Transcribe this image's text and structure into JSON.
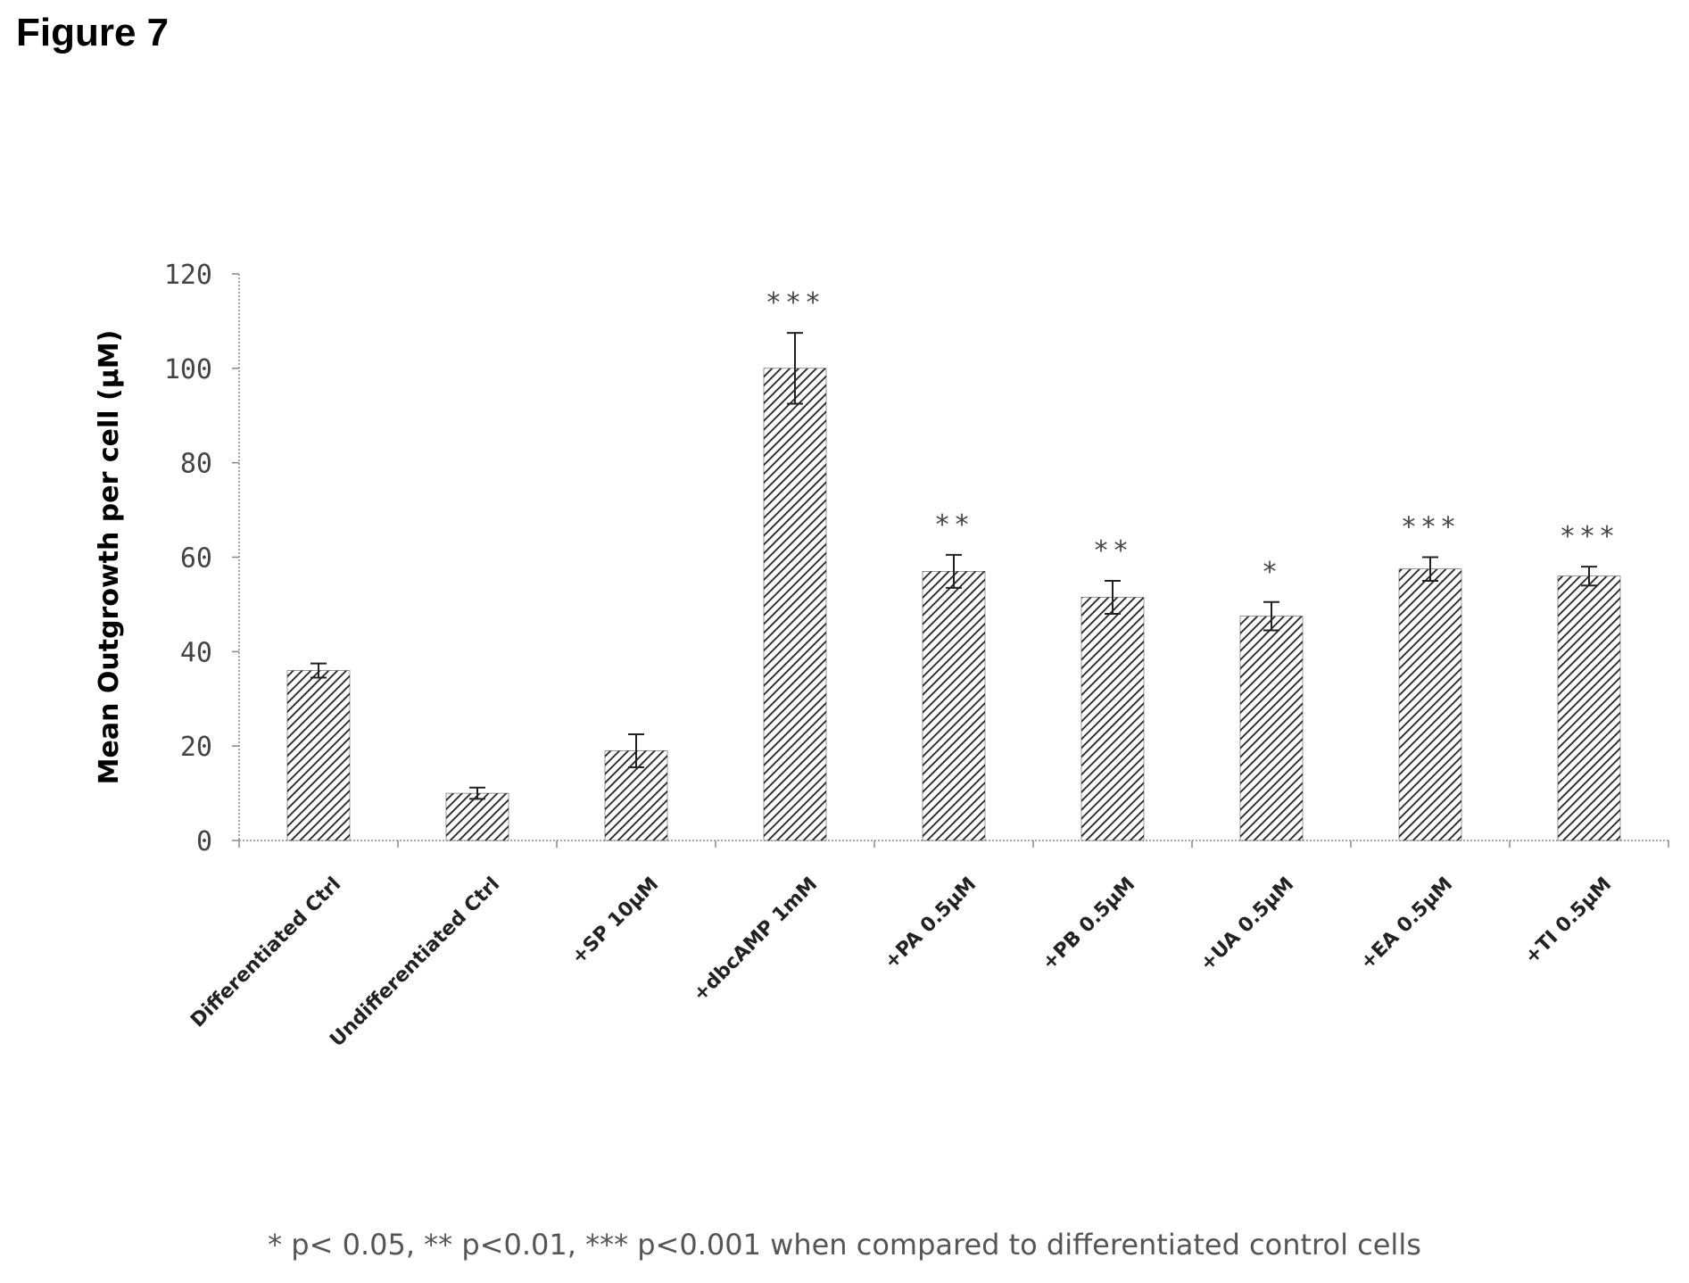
{
  "figure_label": "Figure 7",
  "footnote": "*  p< 0.05, ** p<0.01, *** p<0.001 when compared to differentiated control cells",
  "chart_data": {
    "type": "bar",
    "title": "",
    "xlabel": "",
    "ylabel": "Mean Outgrowth per cell (µM)",
    "ylim": [
      0,
      120
    ],
    "yticks": [
      0,
      20,
      40,
      60,
      80,
      100,
      120
    ],
    "grid": false,
    "bar_pattern": "diagonal-hatch",
    "colors": {
      "bar_fill": "#ffffff",
      "hatch": "#222222",
      "axis": "#888888"
    },
    "categories": [
      "Differentiated Ctrl",
      "Undifferentiated Ctrl",
      "+SP 10µM",
      "+dbcAMP 1mM",
      "+PA 0.5µM",
      "+PB 0.5µM",
      "+UA 0.5µM",
      "+EA 0.5µM",
      "+TI 0.5µM"
    ],
    "values": [
      36,
      10,
      19,
      100,
      57,
      51.5,
      47.5,
      57.5,
      56
    ],
    "errors": [
      1.5,
      1.2,
      3.5,
      7.5,
      3.5,
      3.5,
      3,
      2.5,
      2
    ],
    "significance": [
      "",
      "",
      "",
      "***",
      "**",
      "**",
      "*",
      "***",
      "***"
    ]
  }
}
